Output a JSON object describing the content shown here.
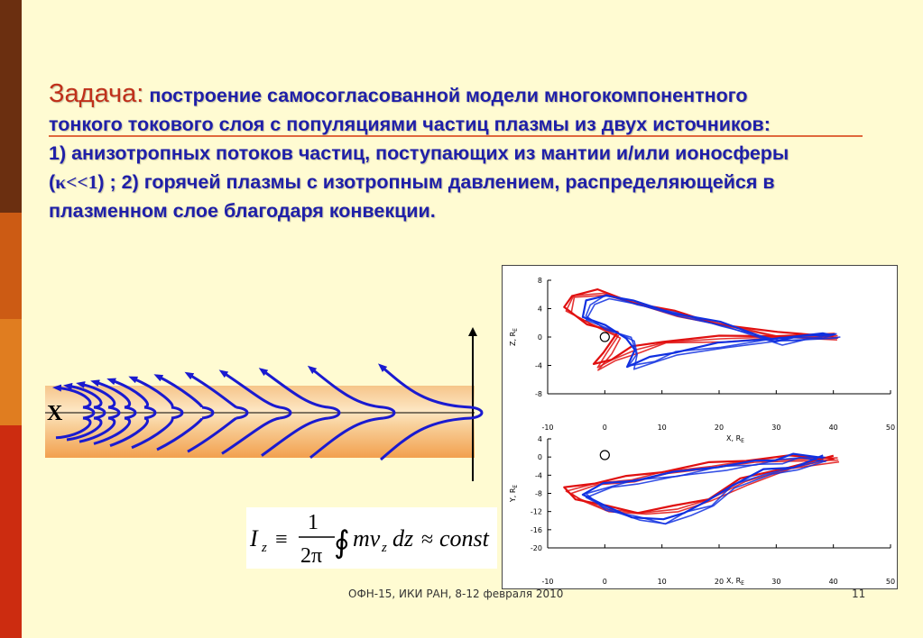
{
  "sidebar": {
    "colors": [
      "#6b2f10",
      "#cc5b14",
      "#e07d20",
      "#cc2c10"
    ]
  },
  "title": {
    "word": "Задача:",
    "line1_rest": " построение самосогласованной модели многокомпонентного",
    "line2": "тонкого токового слоя с популяциями частиц плазмы из двух источников:",
    "line3": "1) анизотропных потоков частиц, поступающих из мантии и/или ионосферы",
    "line4a": "(",
    "kappa": "κ<<1",
    "line4b": ") ; 2) горячей плазмы  с изотропным давлением, распределяющейся в",
    "line5": "плазменном слое благодаря конвекции."
  },
  "diagram": {
    "x_label": "X"
  },
  "formula": {
    "I": "I",
    "z_sub": "z",
    "equiv": "≡",
    "num": "1",
    "den": "2π",
    "integral": "∫",
    "ointegral": "∮",
    "body": "mv",
    "vz": "z",
    "dz": "dz",
    "approx": "≈",
    "const": "const"
  },
  "chart_data": [
    {
      "type": "line",
      "title": "",
      "xlabel": "X, R",
      "xlabel_sub": "E",
      "ylabel": "Z, R",
      "ylabel_sub": "E",
      "xlim": [
        -10,
        50
      ],
      "ylim": [
        -8,
        8
      ],
      "x_ticks": [
        "-10",
        "0",
        "10",
        "20",
        "30",
        "40",
        "50"
      ],
      "y_ticks": [
        "8",
        "4",
        "0",
        "-4",
        "-8"
      ],
      "series": [
        {
          "color": "#e01010",
          "x": [
            40,
            30,
            20,
            12,
            5,
            -1,
            -6,
            -7,
            -3,
            2,
            0,
            -2,
            1,
            5,
            10,
            20,
            30,
            40
          ],
          "y": [
            0.3,
            0.5,
            2,
            3.5,
            5,
            6.5,
            6,
            4,
            2,
            0.5,
            -2,
            -4,
            -3,
            -1.5,
            -0.5,
            0,
            0.3,
            0.3
          ]
        },
        {
          "color": "#1030e0",
          "x": [
            40,
            34,
            30,
            20,
            12,
            5,
            0,
            -3,
            -4,
            0,
            4,
            5,
            4,
            8,
            12,
            20,
            30,
            38,
            40
          ],
          "y": [
            0.5,
            0,
            -0.5,
            2,
            3.5,
            5,
            6,
            5,
            3,
            1.5,
            0,
            -2,
            -4,
            -3,
            -2,
            -1,
            0,
            0.3,
            0.5
          ]
        }
      ]
    },
    {
      "type": "line",
      "title": "",
      "xlabel": "X, R",
      "xlabel_sub": "E",
      "ylabel": "Y, R",
      "ylabel_sub": "E",
      "xlim": [
        -10,
        50
      ],
      "ylim": [
        -20,
        4
      ],
      "x_ticks": [
        "-10",
        "0",
        "10",
        "20",
        "30",
        "40",
        "50"
      ],
      "y_ticks": [
        "4",
        "0",
        "-4",
        "-8",
        "-12",
        "-16",
        "-20"
      ],
      "series": [
        {
          "color": "#e01010",
          "x": [
            40,
            32,
            25,
            18,
            10,
            4,
            -2,
            -7,
            -5,
            0,
            6,
            12,
            18,
            24,
            32,
            40
          ],
          "y": [
            0,
            0,
            -0.5,
            -1.5,
            -3,
            -4.5,
            -5.5,
            -7,
            -9,
            -11,
            -12,
            -11,
            -9,
            -5,
            -2,
            0
          ]
        },
        {
          "color": "#1030e0",
          "x": [
            38,
            33,
            30,
            26,
            20,
            12,
            5,
            0,
            -4,
            0,
            5,
            10,
            14,
            18,
            22,
            28,
            33,
            38
          ],
          "y": [
            0,
            0.5,
            -0.5,
            -1,
            -2,
            -3.5,
            -5,
            -6,
            -8,
            -11,
            -13,
            -14,
            -12,
            -10,
            -6,
            -3,
            -2,
            0
          ]
        }
      ]
    }
  ],
  "footer": {
    "left": "ОФН-15, ИКИ РАН, 8-12 февраля 2010",
    "page": "11"
  }
}
